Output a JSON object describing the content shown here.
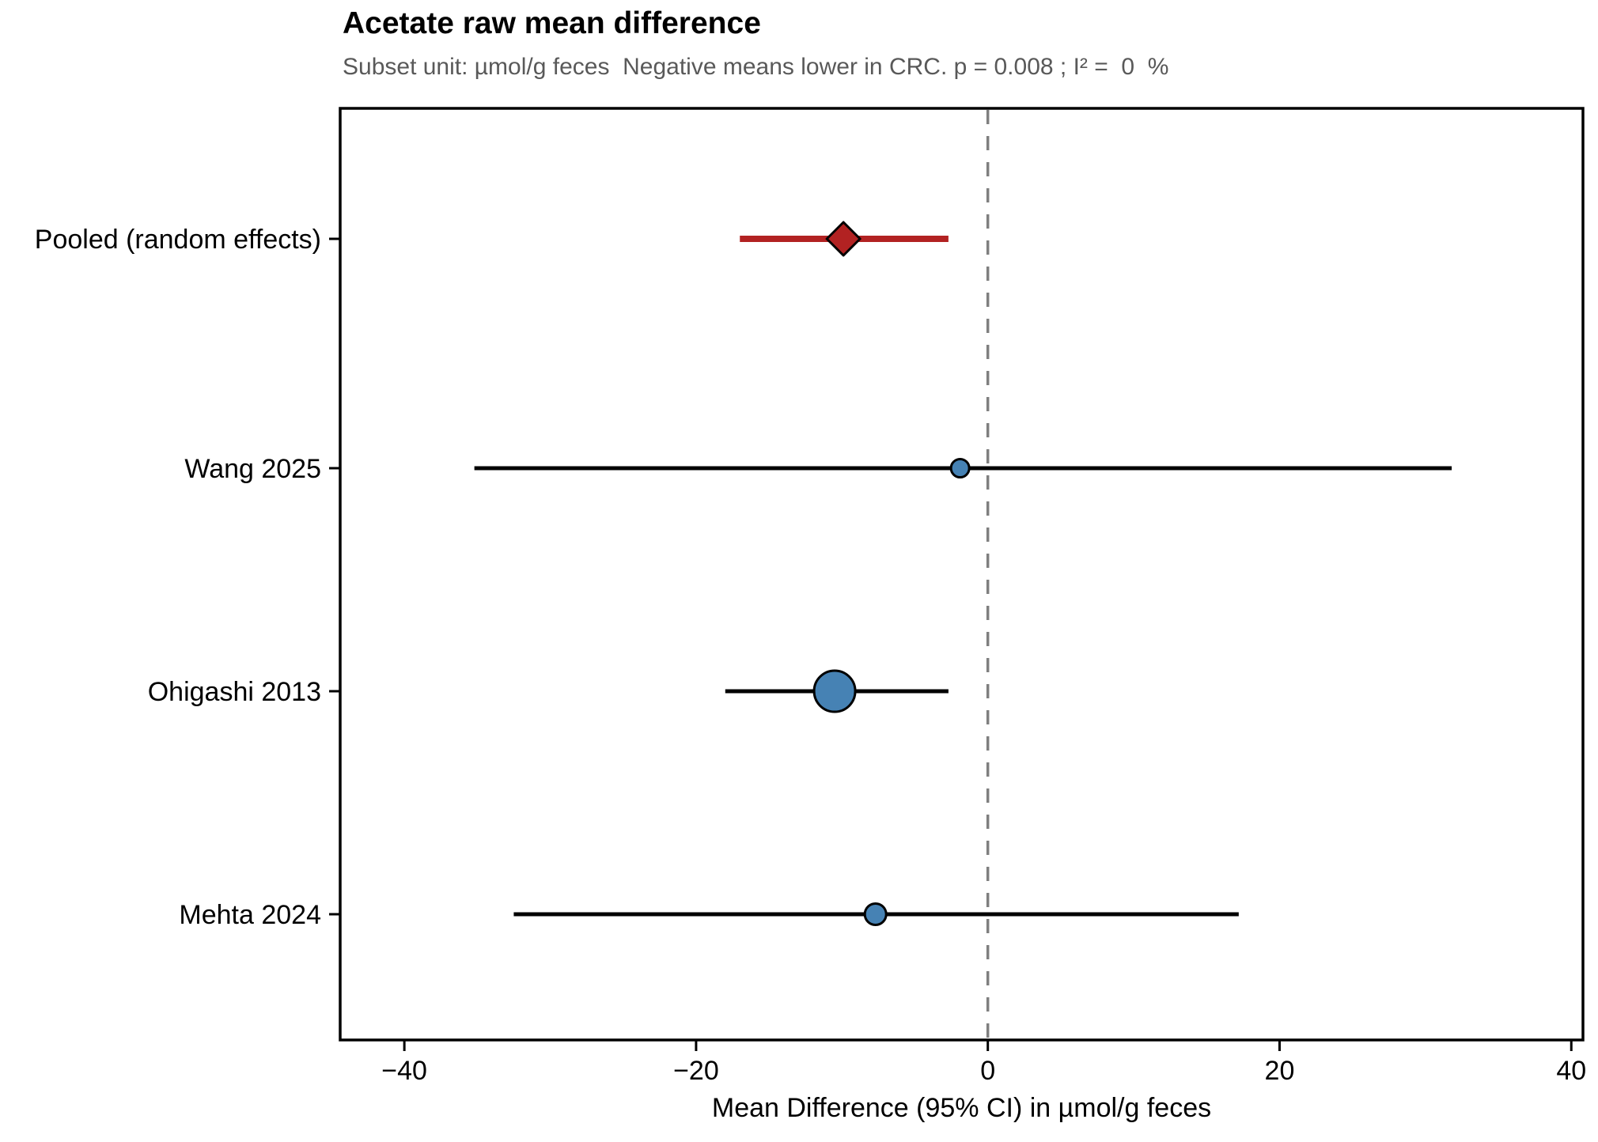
{
  "page": {
    "background": "#ffffff"
  },
  "chart_data": {
    "type": "forest",
    "title": "Acetate raw mean difference",
    "subtitle": "Subset unit: µmol/g feces  Negative means lower in CRC. p = 0.008 ; I² =  0  %",
    "xlabel": "Mean Difference (95% CI) in µmol/g feces",
    "xlim": [
      -44.4,
      40.8
    ],
    "xticks": [
      -40,
      -20,
      0,
      20,
      40
    ],
    "xtick_labels": [
      "−40",
      "−20",
      "0",
      "20",
      "40"
    ],
    "zero_line_x": 0,
    "grid": false,
    "legend": "none",
    "p_value": "0.008",
    "i_squared_pct": "0",
    "unit": "µmol/g feces",
    "rows": [
      {
        "label": "Pooled (random effects)",
        "estimate": -9.9,
        "ci_low": -17.0,
        "ci_high": -2.7,
        "marker": "diamond",
        "marker_size": 42,
        "marker_color": "#B22222",
        "line_color": "#B22222",
        "line_width": 8
      },
      {
        "label": "Wang 2025",
        "estimate": -1.9,
        "ci_low": -35.2,
        "ci_high": 31.8,
        "marker": "circle",
        "marker_size": 23,
        "marker_color": "#4682B4",
        "line_color": "#000000",
        "line_width": 5
      },
      {
        "label": "Ohigashi 2013",
        "estimate": -10.5,
        "ci_low": -18.0,
        "ci_high": -2.7,
        "marker": "circle",
        "marker_size": 52,
        "marker_color": "#4682B4",
        "line_color": "#000000",
        "line_width": 5
      },
      {
        "label": "Mehta 2024",
        "estimate": -7.7,
        "ci_low": -32.5,
        "ci_high": 17.2,
        "marker": "circle",
        "marker_size": 27,
        "marker_color": "#4682B4",
        "line_color": "#000000",
        "line_width": 5
      }
    ],
    "colors": {
      "pooled_accent": "#B22222",
      "study_point": "#4682B4",
      "zero_line": "#7F7F7F",
      "border": "#000000",
      "subtitle_text": "#595959",
      "marker_outline": "#000000"
    }
  }
}
